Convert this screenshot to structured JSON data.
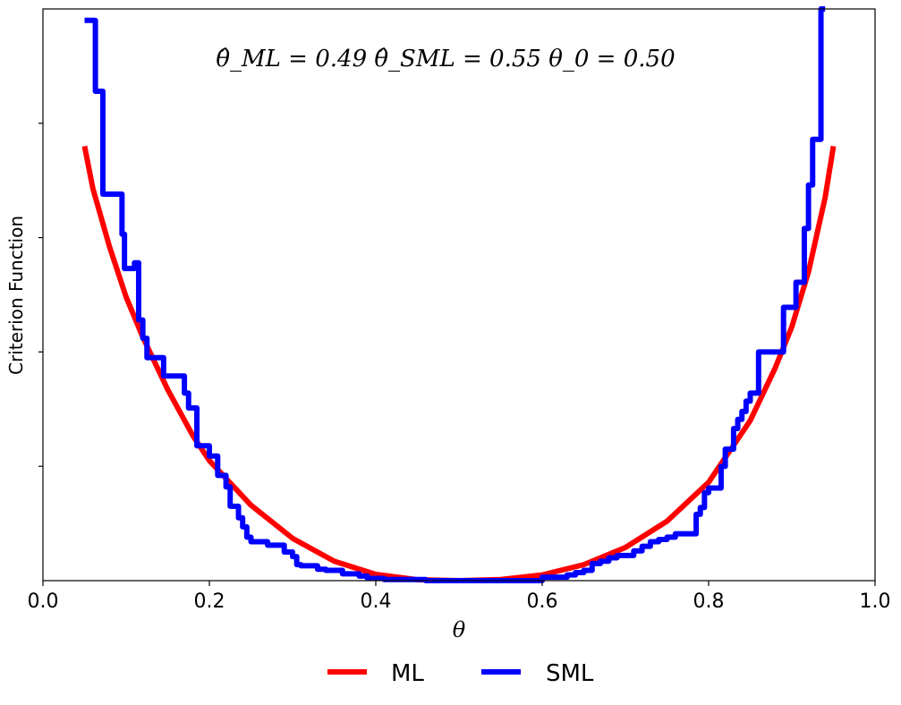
{
  "chart_data": {
    "type": "line",
    "xlabel": "θ",
    "ylabel": "Criterion Function",
    "xlim": [
      0.0,
      1.0
    ],
    "ylim": [
      0.0,
      5.0
    ],
    "xticks": [
      "0.0",
      "0.2",
      "0.4",
      "0.6",
      "0.8",
      "1.0"
    ],
    "yticks": [
      1,
      2,
      3,
      4
    ],
    "ytick_labels_shown": false,
    "annotation": "θ̂_ML = 0.49      θ̂_SML = 0.55      θ_0 = 0.50",
    "legend": {
      "placement": "bottom-center",
      "entries": [
        "ML",
        "SML"
      ]
    },
    "series": [
      {
        "name": "ML",
        "color": "#ff0000",
        "x": [
          0.05,
          0.06,
          0.08,
          0.1,
          0.12,
          0.15,
          0.18,
          0.2,
          0.25,
          0.3,
          0.35,
          0.4,
          0.45,
          0.5,
          0.55,
          0.6,
          0.65,
          0.7,
          0.75,
          0.8,
          0.85,
          0.88,
          0.9,
          0.92,
          0.94,
          0.95
        ],
        "y": [
          3.8,
          3.43,
          2.92,
          2.48,
          2.13,
          1.67,
          1.27,
          1.05,
          0.66,
          0.37,
          0.17,
          0.055,
          0.008,
          0.0,
          0.01,
          0.05,
          0.14,
          0.29,
          0.52,
          0.86,
          1.4,
          1.86,
          2.22,
          2.7,
          3.35,
          3.8
        ]
      },
      {
        "name": "SML",
        "color": "#0000ff",
        "x": [
          0.05,
          0.06,
          0.063,
          0.067,
          0.072,
          0.08,
          0.095,
          0.098,
          0.105,
          0.11,
          0.115,
          0.12,
          0.125,
          0.13,
          0.145,
          0.165,
          0.17,
          0.175,
          0.185,
          0.19,
          0.2,
          0.21,
          0.22,
          0.225,
          0.235,
          0.24,
          0.245,
          0.25,
          0.255,
          0.26,
          0.27,
          0.28,
          0.29,
          0.3,
          0.305,
          0.31,
          0.315,
          0.32,
          0.33,
          0.34,
          0.36,
          0.38,
          0.39,
          0.41,
          0.46,
          0.5,
          0.56,
          0.6,
          0.62,
          0.63,
          0.64,
          0.65,
          0.66,
          0.67,
          0.68,
          0.69,
          0.7,
          0.71,
          0.72,
          0.73,
          0.74,
          0.75,
          0.76,
          0.78,
          0.785,
          0.79,
          0.795,
          0.8,
          0.81,
          0.815,
          0.82,
          0.83,
          0.835,
          0.84,
          0.845,
          0.85,
          0.86,
          0.885,
          0.89,
          0.9,
          0.905,
          0.91,
          0.915,
          0.92,
          0.925,
          0.93,
          0.935,
          0.94
        ],
        "y": [
          4.9,
          4.9,
          4.28,
          4.28,
          3.38,
          3.38,
          3.03,
          2.73,
          2.73,
          2.78,
          2.28,
          2.12,
          1.95,
          1.95,
          1.79,
          1.79,
          1.64,
          1.51,
          1.18,
          1.18,
          1.09,
          0.92,
          0.82,
          0.65,
          0.55,
          0.47,
          0.38,
          0.34,
          0.34,
          0.34,
          0.31,
          0.31,
          0.25,
          0.21,
          0.14,
          0.13,
          0.13,
          0.13,
          0.1,
          0.09,
          0.06,
          0.04,
          0.02,
          0.01,
          0.0,
          0.0,
          0.0,
          0.03,
          0.03,
          0.05,
          0.07,
          0.09,
          0.15,
          0.17,
          0.2,
          0.22,
          0.22,
          0.26,
          0.3,
          0.34,
          0.36,
          0.38,
          0.41,
          0.41,
          0.58,
          0.64,
          0.77,
          0.81,
          0.81,
          1.0,
          1.15,
          1.33,
          1.41,
          1.48,
          1.57,
          1.64,
          2.0,
          2.0,
          2.39,
          2.39,
          2.61,
          2.61,
          3.08,
          3.46,
          3.86,
          3.86,
          5.0,
          5.0
        ]
      }
    ]
  }
}
